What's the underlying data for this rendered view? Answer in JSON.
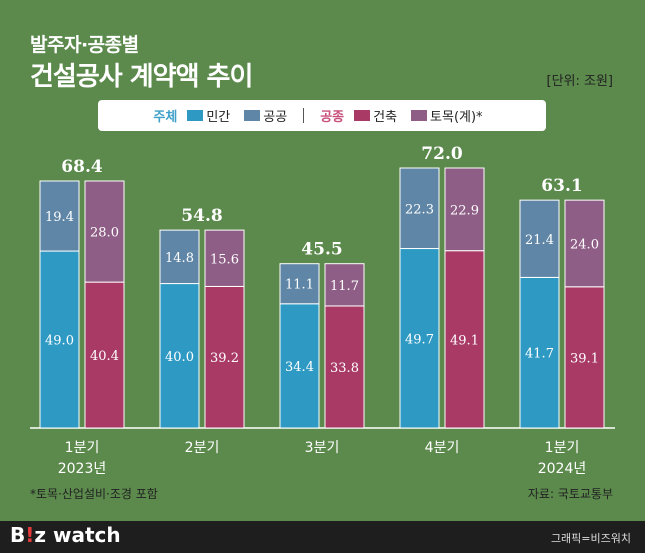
{
  "header": {
    "title_line1": "발주자·공종별",
    "title_line2": "건설공사 계약액 추이",
    "unit": "[단위: 조원]"
  },
  "legend": {
    "group1_label": "주체",
    "group2_label": "공종",
    "items": [
      {
        "label": "민간",
        "color": "#2e9ac4"
      },
      {
        "label": "공공",
        "color": "#5f86a6"
      },
      {
        "label": "건축",
        "color": "#a83a65"
      },
      {
        "label": "토목(계)*",
        "color": "#8e5e86"
      }
    ]
  },
  "chart_data": {
    "type": "bar",
    "stacked": true,
    "categories": [
      "1분기\n2023년",
      "2분기",
      "3분기",
      "4분기",
      "1분기\n2024년"
    ],
    "totals": [
      68.4,
      54.8,
      45.5,
      72.0,
      63.1
    ],
    "stacks": [
      {
        "name": "주체",
        "series": [
          {
            "name": "민간",
            "values": [
              49.0,
              40.0,
              34.4,
              49.7,
              41.7
            ],
            "color": "#2e9ac4"
          },
          {
            "name": "공공",
            "values": [
              19.4,
              14.8,
              11.1,
              22.3,
              21.4
            ],
            "color": "#5f86a6"
          }
        ]
      },
      {
        "name": "공종",
        "series": [
          {
            "name": "건축",
            "values": [
              40.4,
              39.2,
              33.8,
              49.1,
              39.1
            ],
            "color": "#a83a65"
          },
          {
            "name": "토목(계)*",
            "values": [
              28.0,
              15.6,
              11.7,
              22.9,
              24.0
            ],
            "color": "#8e5e86"
          }
        ]
      }
    ],
    "category_lines": [
      [
        "1분기",
        "2023년"
      ],
      [
        "2분기"
      ],
      [
        "3분기"
      ],
      [
        "4분기"
      ],
      [
        "1분기",
        "2024년"
      ]
    ],
    "total_labels": [
      "68.4",
      "54.8",
      "45.5",
      "72.0",
      "63.1"
    ],
    "value_labels": [
      [
        "49.0",
        "40.0",
        "34.4",
        "49.7",
        "41.7"
      ],
      [
        "19.4",
        "14.8",
        "11.1",
        "22.3",
        "21.4"
      ],
      [
        "40.4",
        "39.2",
        "33.8",
        "49.1",
        "39.1"
      ],
      [
        "28.0",
        "15.6",
        "11.7",
        "22.9",
        "24.0"
      ]
    ],
    "ylim": [
      0,
      72
    ]
  },
  "footer": {
    "footnote": "*토목·산업설비·조경 포함",
    "source": "자료: 국토교통부",
    "logo_b": "B",
    "logo_i": "!",
    "logo_rest": "z watch",
    "credit": "그래픽=비즈워치"
  }
}
